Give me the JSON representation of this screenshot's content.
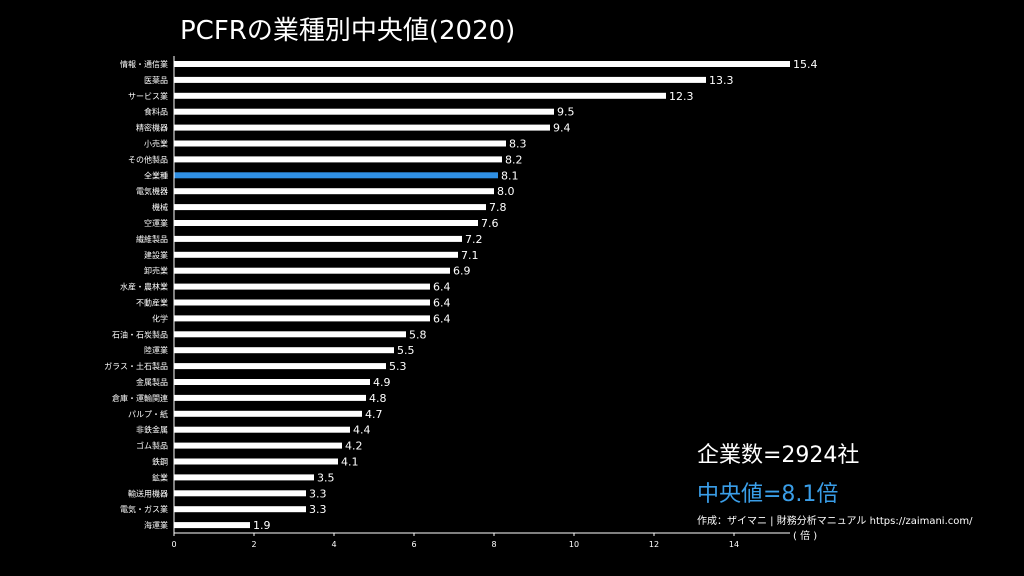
{
  "chart_data": {
    "type": "bar",
    "orientation": "horizontal",
    "title": "PCFRの業種別中央値(2020)",
    "xlabel": "( 倍 )",
    "ylabel": "",
    "xlim": [
      0,
      15.4
    ],
    "xticks": [
      0,
      2,
      4,
      6,
      8,
      10,
      12,
      14
    ],
    "grid": false,
    "highlight_category": "全業種",
    "highlight_color": "#2f8fe3",
    "bar_color": "#ffffff",
    "categories": [
      "情報・通信業",
      "医薬品",
      "サービス業",
      "食料品",
      "精密機器",
      "小売業",
      "その他製品",
      "全業種",
      "電気機器",
      "機械",
      "空運業",
      "繊維製品",
      "建設業",
      "卸売業",
      "水産・農林業",
      "不動産業",
      "化学",
      "石油・石炭製品",
      "陸運業",
      "ガラス・土石製品",
      "金属製品",
      "倉庫・運輸関連",
      "パルプ・紙",
      "非鉄金属",
      "ゴム製品",
      "鉄鋼",
      "鉱業",
      "輸送用機器",
      "電気・ガス業",
      "海運業"
    ],
    "values": [
      15.4,
      13.3,
      12.3,
      9.5,
      9.4,
      8.3,
      8.2,
      8.1,
      8.0,
      7.8,
      7.6,
      7.2,
      7.1,
      6.9,
      6.4,
      6.4,
      6.4,
      5.8,
      5.5,
      5.3,
      4.9,
      4.8,
      4.7,
      4.4,
      4.2,
      4.1,
      3.5,
      3.3,
      3.3,
      1.9
    ],
    "value_labels": [
      "15.4",
      "13.3",
      "12.3",
      "9.5",
      "9.4",
      "8.3",
      "8.2",
      "8.1",
      "8.0",
      "7.8",
      "7.6",
      "7.2",
      "7.1",
      "6.9",
      "6.4",
      "6.4",
      "6.4",
      "5.8",
      "5.5",
      "5.3",
      "4.9",
      "4.8",
      "4.7",
      "4.4",
      "4.2",
      "4.1",
      "3.5",
      "3.3",
      "3.3",
      "1.9"
    ]
  },
  "annotations": {
    "company_count": "企業数=2924社",
    "median": "中央値=8.1倍",
    "median_color": "#3a9ee8",
    "source": "作成：ザイマニ | 財務分析マニュアル https://zaimani.com/"
  }
}
